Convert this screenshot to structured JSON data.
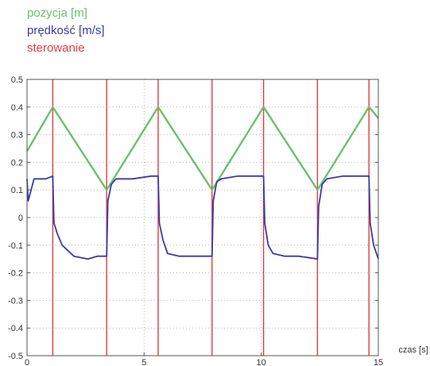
{
  "legend": [
    {
      "label": "pozycja [m]",
      "color": "#6cc06c"
    },
    {
      "label": "prędkość [m/s]",
      "color": "#3a3aa8"
    },
    {
      "label": "sterowanie",
      "color": "#e03c3c"
    }
  ],
  "chart_data": {
    "type": "line",
    "title": "",
    "xlabel": "czas [s]",
    "ylabel": "",
    "xlim": [
      0,
      15
    ],
    "ylim": [
      -0.5,
      0.5
    ],
    "xticks": [
      0,
      5,
      10,
      15
    ],
    "yticks": [
      -0.5,
      -0.4,
      -0.3,
      -0.2,
      -0.1,
      0,
      0.1,
      0.2,
      0.3,
      0.4,
      0.5
    ],
    "ytick_labels": [
      "-0.5",
      "-0.4",
      "-0.3",
      "-0.2",
      "-0.1",
      "0",
      "0.1",
      "0.2",
      "0.3",
      "0.4",
      "0.5"
    ],
    "xtick_labels": [
      "0",
      "5",
      "10",
      "15"
    ],
    "grid": true,
    "legend_position": "top-left",
    "series": [
      {
        "name": "pozycja [m]",
        "color": "#6cc06c",
        "x": [
          0,
          1.1,
          3.4,
          5.6,
          7.9,
          10.1,
          12.4,
          14.6,
          15
        ],
        "y": [
          0.24,
          0.4,
          0.1,
          0.4,
          0.1,
          0.4,
          0.1,
          0.4,
          0.36
        ]
      },
      {
        "name": "prędkość [m/s]",
        "color": "#3a3aa8",
        "x": [
          0,
          0.05,
          0.3,
          0.8,
          1.1,
          1.15,
          1.3,
          1.5,
          2.0,
          2.6,
          3.0,
          3.4,
          3.45,
          3.6,
          3.8,
          4.5,
          5.3,
          5.6,
          5.65,
          5.8,
          6.0,
          6.5,
          7.2,
          7.9,
          7.95,
          8.1,
          8.3,
          9.0,
          9.8,
          10.1,
          10.15,
          10.3,
          10.5,
          11.0,
          11.6,
          12.4,
          12.45,
          12.6,
          12.8,
          13.5,
          14.3,
          14.6,
          14.65,
          14.8,
          15
        ],
        "y": [
          0.14,
          0.06,
          0.14,
          0.14,
          0.15,
          -0.02,
          -0.06,
          -0.1,
          -0.14,
          -0.15,
          -0.14,
          -0.14,
          0.06,
          0.12,
          0.14,
          0.14,
          0.15,
          0.15,
          -0.02,
          -0.08,
          -0.13,
          -0.14,
          -0.14,
          -0.14,
          0.06,
          0.13,
          0.14,
          0.15,
          0.15,
          0.15,
          -0.02,
          -0.1,
          -0.13,
          -0.14,
          -0.14,
          -0.15,
          0.04,
          0.12,
          0.14,
          0.15,
          0.15,
          0.15,
          -0.02,
          -0.1,
          -0.15
        ]
      }
    ],
    "control_lines": {
      "name": "sterowanie",
      "color": "#e03c3c",
      "x": [
        1.1,
        3.4,
        5.6,
        7.9,
        10.1,
        12.4,
        14.6
      ]
    }
  }
}
